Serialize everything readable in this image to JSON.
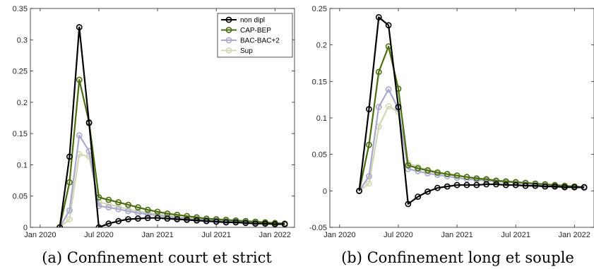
{
  "chart_data": [
    {
      "type": "line",
      "caption": "(a) Confinement court et strict",
      "x": [
        "2020-03",
        "2020-04",
        "2020-05",
        "2020-06",
        "2020-07",
        "2020-08",
        "2020-09",
        "2020-10",
        "2020-11",
        "2020-12",
        "2021-01",
        "2021-02",
        "2021-03",
        "2021-04",
        "2021-05",
        "2021-06",
        "2021-07",
        "2021-08",
        "2021-09",
        "2021-10",
        "2021-11",
        "2021-12",
        "2022-01",
        "2022-02"
      ],
      "x_ticks": [
        "Jan 2020",
        "Jul 2020",
        "Jan 2021",
        "Jul 2021",
        "Jan 2022"
      ],
      "ylim": [
        0,
        0.35
      ],
      "y_ticks": [
        "0",
        "0.05",
        "0.1",
        "0.15",
        "0.2",
        "0.25",
        "0.3",
        "0.35"
      ],
      "legend": {
        "position": "top-right",
        "entries": [
          "non dipl",
          "CAP-BEP",
          "BAC-BAC+2",
          "Sup"
        ]
      },
      "series": [
        {
          "name": "non dipl",
          "color": "#000000",
          "values": [
            0,
            0.113,
            0.32,
            0.167,
            0,
            0.006,
            0.01,
            0.013,
            0.014,
            0.015,
            0.015,
            0.014,
            0.013,
            0.012,
            0.011,
            0.01,
            0.009,
            0.008,
            0.008,
            0.007,
            0.006,
            0.006,
            0.005,
            0.005
          ]
        },
        {
          "name": "CAP-BEP",
          "color": "#4a6e0f",
          "values": [
            0,
            0.072,
            0.236,
            0.168,
            0.048,
            0.044,
            0.04,
            0.036,
            0.032,
            0.028,
            0.025,
            0.022,
            0.02,
            0.018,
            0.016,
            0.014,
            0.013,
            0.012,
            0.011,
            0.01,
            0.009,
            0.008,
            0.007,
            0.006
          ]
        },
        {
          "name": "BAC-BAC+2",
          "color": "#a9a9cc",
          "values": [
            0,
            0.027,
            0.147,
            0.122,
            0.034,
            0.032,
            0.029,
            0.026,
            0.023,
            0.021,
            0.019,
            0.017,
            0.015,
            0.014,
            0.013,
            0.012,
            0.011,
            0.01,
            0.009,
            0.008,
            0.007,
            0.006,
            0.006,
            0.005
          ]
        },
        {
          "name": "Sup",
          "color": "#d3d8b4",
          "values": [
            0,
            0.013,
            0.117,
            0.113,
            0.04,
            0.037,
            0.033,
            0.029,
            0.026,
            0.023,
            0.021,
            0.019,
            0.017,
            0.015,
            0.014,
            0.013,
            0.011,
            0.01,
            0.009,
            0.008,
            0.007,
            0.006,
            0.006,
            0.005
          ]
        }
      ]
    },
    {
      "type": "line",
      "caption": "(b) Confinement long et souple",
      "x": [
        "2020-03",
        "2020-04",
        "2020-05",
        "2020-06",
        "2020-07",
        "2020-08",
        "2020-09",
        "2020-10",
        "2020-11",
        "2020-12",
        "2021-01",
        "2021-02",
        "2021-03",
        "2021-04",
        "2021-05",
        "2021-06",
        "2021-07",
        "2021-08",
        "2021-09",
        "2021-10",
        "2021-11",
        "2021-12",
        "2022-01",
        "2022-02"
      ],
      "x_ticks": [
        "Jan 2020",
        "Jul 2020",
        "Jan 2021",
        "Jul 2021",
        "Jan 2022"
      ],
      "ylim": [
        -0.05,
        0.25
      ],
      "y_ticks": [
        "-0.05",
        "0",
        "0.05",
        "0.1",
        "0.15",
        "0.2",
        "0.25"
      ],
      "series": [
        {
          "name": "non dipl",
          "color": "#000000",
          "values": [
            0,
            0.112,
            0.238,
            0.227,
            0.115,
            -0.018,
            -0.008,
            -0.001,
            0.004,
            0.006,
            0.008,
            0.008,
            0.008,
            0.009,
            0.009,
            0.008,
            0.008,
            0.007,
            0.007,
            0.006,
            0.006,
            0.005,
            0.005,
            0.005
          ]
        },
        {
          "name": "CAP-BEP",
          "color": "#4a6e0f",
          "values": [
            0,
            0.063,
            0.163,
            0.198,
            0.14,
            0.035,
            0.031,
            0.028,
            0.025,
            0.023,
            0.021,
            0.019,
            0.017,
            0.016,
            0.014,
            0.013,
            0.012,
            0.011,
            0.01,
            0.009,
            0.008,
            0.007,
            0.006,
            0.005
          ]
        },
        {
          "name": "BAC-BAC+2",
          "color": "#a9a9cc",
          "values": [
            0,
            0.02,
            0.115,
            0.139,
            0.113,
            0.03,
            0.027,
            0.024,
            0.022,
            0.02,
            0.018,
            0.016,
            0.015,
            0.014,
            0.013,
            0.012,
            0.011,
            0.01,
            0.009,
            0.008,
            0.007,
            0.006,
            0.005,
            0.004
          ]
        },
        {
          "name": "Sup",
          "color": "#d3d8b4",
          "values": [
            0,
            0.01,
            0.088,
            0.116,
            0.108,
            0.038,
            0.033,
            0.029,
            0.026,
            0.023,
            0.021,
            0.019,
            0.017,
            0.015,
            0.014,
            0.013,
            0.012,
            0.011,
            0.01,
            0.009,
            0.008,
            0.007,
            0.006,
            0.005
          ]
        }
      ]
    }
  ]
}
